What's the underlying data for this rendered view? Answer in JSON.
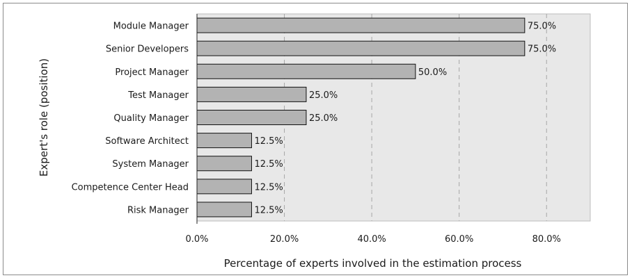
{
  "chart_data": {
    "type": "bar",
    "orientation": "horizontal",
    "categories": [
      "Module Manager",
      "Senior Developers",
      "Project Manager",
      "Test Manager",
      "Quality Manager",
      "Software Architect",
      "System Manager",
      "Competence Center Head",
      "Risk Manager"
    ],
    "values": [
      75.0,
      75.0,
      50.0,
      25.0,
      25.0,
      12.5,
      12.5,
      12.5,
      12.5
    ],
    "value_labels": [
      "75.0%",
      "75.0%",
      "50.0%",
      "25.0%",
      "25.0%",
      "12.5%",
      "12.5%",
      "12.5%",
      "12.5%"
    ],
    "title": "",
    "xlabel": "Percentage of experts involved in the estimation process",
    "ylabel": "Expert's role (position)",
    "xlim": [
      0,
      90
    ],
    "xticks": [
      0,
      20,
      40,
      60,
      80
    ],
    "xtick_labels": [
      "0.0%",
      "20.0%",
      "40.0%",
      "60.0%",
      "80.0%"
    ],
    "grid": "vertical dashed",
    "legend": "none",
    "colors": {
      "bar_fill": "#b3b3b3",
      "bar_stroke": "#111111",
      "plot_background": "#e8e8e8",
      "grid": "#a6a6a6"
    }
  }
}
